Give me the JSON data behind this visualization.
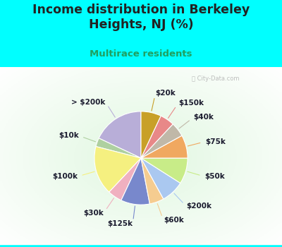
{
  "title": "Income distribution in Berkeley\nHeights, NJ (%)",
  "subtitle": "Multirace residents",
  "watermark": "City-Data.com",
  "labels": [
    "> $200k",
    "$10k",
    "$100k",
    "$30k",
    "$125k",
    "$60k",
    "$200k",
    "$50k",
    "$75k",
    "$40k",
    "$150k",
    "$20k"
  ],
  "values": [
    18,
    3,
    17,
    5,
    10,
    5,
    8,
    9,
    8,
    5,
    5,
    7
  ],
  "colors": [
    "#b8aed8",
    "#aed0a0",
    "#f5f080",
    "#f0b0c0",
    "#7888cc",
    "#f5cc90",
    "#aac8f0",
    "#c8ec88",
    "#f0a860",
    "#c0b8a8",
    "#e88888",
    "#c8a028"
  ],
  "bg_color_outer": "#00ffff",
  "title_color": "#222222",
  "subtitle_color": "#20a060",
  "label_fontsize": 7.5,
  "title_fontsize": 12.5,
  "subtitle_fontsize": 9.5
}
